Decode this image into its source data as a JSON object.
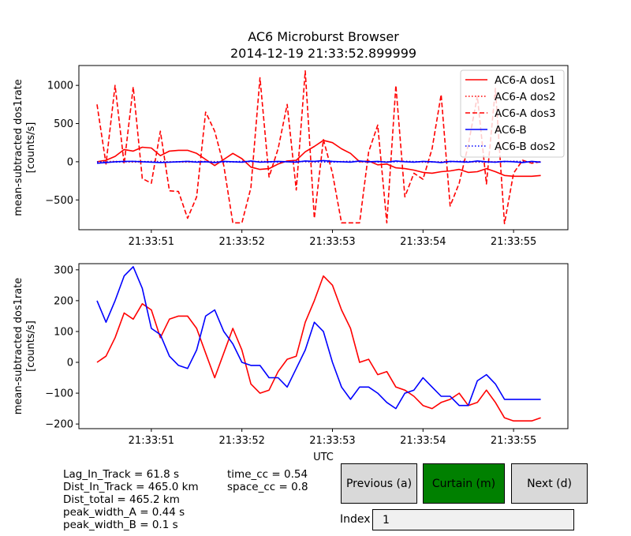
{
  "title": {
    "line1": "AC6 Microburst Browser",
    "line2": "2014-12-19 21:33:52.899999"
  },
  "colors": {
    "ac6a": "#ff0000",
    "ac6b": "#0000ff",
    "button_face": "#d9d9d9",
    "button_active": "#008000",
    "textbox_bg": "#f0f0f0"
  },
  "chart_data": [
    {
      "type": "line",
      "ylabel": "mean-subtracted dos1rate\n[counts/s]",
      "ylim": [
        -890,
        1260
      ],
      "yticks": [
        -500,
        0,
        500,
        1000
      ],
      "xlim": [
        50.2,
        55.6
      ],
      "xticks": [
        51,
        52,
        53,
        54,
        55
      ],
      "xtick_labels": [
        "21:33:51",
        "21:33:52",
        "21:33:53",
        "21:33:54",
        "21:33:55"
      ],
      "legend": {
        "placement": "top-right",
        "entries": [
          "AC6-A dos1",
          "AC6-A dos2",
          "AC6-A dos3",
          "AC6-B",
          "AC6-B dos2"
        ]
      },
      "series": [
        {
          "name": "AC6-A dos1",
          "color": "#ff0000",
          "dash": "solid",
          "x": [
            50.4,
            50.5,
            50.6,
            50.7,
            50.8,
            50.9,
            51.0,
            51.1,
            51.2,
            51.3,
            51.4,
            51.5,
            51.6,
            51.7,
            51.8,
            51.9,
            52.0,
            52.1,
            52.2,
            52.3,
            52.4,
            52.5,
            52.6,
            52.7,
            52.8,
            52.9,
            53.0,
            53.1,
            53.2,
            53.3,
            53.4,
            53.5,
            53.6,
            53.7,
            53.8,
            53.9,
            54.0,
            54.1,
            54.2,
            54.3,
            54.4,
            54.5,
            54.6,
            54.7,
            54.8,
            54.9,
            55.0,
            55.1,
            55.2,
            55.3
          ],
          "y": [
            0,
            20,
            70,
            160,
            140,
            190,
            180,
            80,
            140,
            150,
            150,
            110,
            30,
            -50,
            30,
            110,
            40,
            -70,
            -100,
            -90,
            -30,
            10,
            20,
            130,
            200,
            280,
            250,
            170,
            110,
            0,
            10,
            -40,
            -30,
            -80,
            -90,
            -110,
            -140,
            -150,
            -130,
            -120,
            -100,
            -140,
            -130,
            -90,
            -130,
            -180,
            -190,
            -190,
            -190,
            -180
          ]
        },
        {
          "name": "AC6-A dos2",
          "color": "#ff0000",
          "dash": "dotted",
          "x": [
            50.4,
            50.6,
            50.8,
            51.0,
            51.2,
            51.4,
            51.6,
            51.8,
            52.0,
            52.2,
            52.4,
            52.6,
            52.8,
            53.0,
            53.2,
            53.4,
            53.6,
            53.8,
            54.0,
            54.2,
            54.4,
            54.6,
            54.8,
            55.0,
            55.2,
            55.3
          ],
          "y": [
            0,
            5,
            -5,
            5,
            0,
            -5,
            5,
            0,
            -5,
            5,
            0,
            5,
            -5,
            0,
            5,
            -5,
            0,
            5,
            -5,
            0,
            5,
            -5,
            0,
            5,
            -5,
            0
          ]
        },
        {
          "name": "AC6-A dos3",
          "color": "#ff0000",
          "dash": "dashed",
          "x": [
            50.4,
            50.5,
            50.6,
            50.7,
            50.8,
            50.9,
            51.0,
            51.1,
            51.2,
            51.3,
            51.4,
            51.5,
            51.6,
            51.7,
            51.8,
            51.9,
            52.0,
            52.1,
            52.2,
            52.3,
            52.4,
            52.5,
            52.6,
            52.7,
            52.8,
            52.9,
            53.0,
            53.1,
            53.2,
            53.3,
            53.4,
            53.5,
            53.6,
            53.7,
            53.8,
            53.9,
            54.0,
            54.1,
            54.2,
            54.3,
            54.4,
            54.5,
            54.6,
            54.7,
            54.8,
            54.9,
            55.0,
            55.1,
            55.2,
            55.3
          ],
          "y": [
            750,
            -30,
            1000,
            -30,
            980,
            -220,
            -280,
            400,
            -380,
            -390,
            -740,
            -460,
            650,
            400,
            -50,
            -800,
            -800,
            -340,
            1100,
            -200,
            170,
            750,
            -370,
            1190,
            -740,
            290,
            -150,
            -800,
            -800,
            -800,
            130,
            480,
            -800,
            1000,
            -460,
            -150,
            -230,
            170,
            880,
            -580,
            -280,
            220,
            860,
            -290,
            960,
            -810,
            -150,
            20,
            -20,
            0
          ]
        },
        {
          "name": "AC6-B",
          "color": "#0000ff",
          "dash": "solid",
          "x": [
            50.4,
            50.5,
            50.6,
            50.7,
            50.8,
            50.9,
            51.0,
            51.1,
            51.2,
            51.3,
            51.4,
            51.5,
            51.6,
            51.7,
            51.8,
            51.9,
            52.0,
            52.1,
            52.2,
            52.3,
            52.4,
            52.5,
            52.6,
            52.7,
            52.8,
            52.9,
            53.0,
            53.1,
            53.2,
            53.3,
            53.4,
            53.5,
            53.6,
            53.7,
            53.8,
            53.9,
            54.0,
            54.1,
            54.2,
            54.3,
            54.4,
            54.5,
            54.6,
            54.7,
            54.8,
            54.9,
            55.0,
            55.1,
            55.2,
            55.3
          ],
          "y": [
            -20,
            -10,
            0,
            5,
            5,
            0,
            -5,
            -10,
            -5,
            0,
            5,
            -5,
            0,
            -10,
            5,
            0,
            -5,
            10,
            -5,
            0,
            5,
            0,
            -5,
            10,
            5,
            15,
            5,
            0,
            -5,
            10,
            0,
            5,
            -5,
            10,
            0,
            -5,
            5,
            0,
            -10,
            5,
            0,
            -5,
            10,
            0,
            -5,
            5,
            0,
            -10,
            5,
            -5
          ]
        },
        {
          "name": "AC6-B dos2",
          "color": "#0000ff",
          "dash": "dotted",
          "x": [
            50.4,
            50.6,
            50.8,
            51.0,
            51.2,
            51.4,
            51.6,
            51.8,
            52.0,
            52.2,
            52.4,
            52.6,
            52.8,
            53.0,
            53.2,
            53.4,
            53.6,
            53.8,
            54.0,
            54.2,
            54.4,
            54.6,
            54.8,
            55.0,
            55.2,
            55.3
          ],
          "y": [
            0,
            -5,
            5,
            0,
            -5,
            5,
            0,
            -5,
            5,
            0,
            -5,
            5,
            0,
            -5,
            5,
            0,
            -5,
            5,
            0,
            -5,
            5,
            0,
            -5,
            5,
            0,
            -5
          ]
        }
      ]
    },
    {
      "type": "line",
      "xlabel": "UTC",
      "ylabel": "mean-subtracted dos1rate\n[counts/s]",
      "ylim": [
        -215,
        320
      ],
      "yticks": [
        -200,
        -100,
        0,
        100,
        200,
        300
      ],
      "xlim": [
        50.2,
        55.6
      ],
      "xticks": [
        51,
        52,
        53,
        54,
        55
      ],
      "xtick_labels": [
        "21:33:51",
        "21:33:52",
        "21:33:53",
        "21:33:54",
        "21:33:55"
      ],
      "series": [
        {
          "name": "",
          "color": "#ff0000",
          "dash": "solid",
          "x": [
            50.4,
            50.5,
            50.6,
            50.7,
            50.8,
            50.9,
            51.0,
            51.1,
            51.2,
            51.3,
            51.4,
            51.5,
            51.6,
            51.7,
            51.8,
            51.9,
            52.0,
            52.1,
            52.2,
            52.3,
            52.4,
            52.5,
            52.6,
            52.7,
            52.8,
            52.9,
            53.0,
            53.1,
            53.2,
            53.3,
            53.4,
            53.5,
            53.6,
            53.7,
            53.8,
            53.9,
            54.0,
            54.1,
            54.2,
            54.3,
            54.4,
            54.5,
            54.6,
            54.7,
            54.8,
            54.9,
            55.0,
            55.1,
            55.2,
            55.3
          ],
          "y": [
            0,
            20,
            80,
            160,
            140,
            190,
            170,
            80,
            140,
            150,
            150,
            110,
            30,
            -50,
            30,
            110,
            40,
            -70,
            -100,
            -90,
            -30,
            10,
            20,
            130,
            200,
            280,
            250,
            170,
            110,
            0,
            10,
            -40,
            -30,
            -80,
            -90,
            -110,
            -140,
            -150,
            -130,
            -120,
            -100,
            -140,
            -130,
            -90,
            -130,
            -180,
            -190,
            -190,
            -190,
            -180
          ]
        },
        {
          "name": "",
          "color": "#0000ff",
          "dash": "solid",
          "x": [
            50.4,
            50.5,
            50.6,
            50.7,
            50.8,
            50.9,
            51.0,
            51.1,
            51.2,
            51.3,
            51.4,
            51.5,
            51.6,
            51.7,
            51.8,
            51.9,
            52.0,
            52.1,
            52.2,
            52.3,
            52.4,
            52.5,
            52.6,
            52.7,
            52.8,
            52.9,
            53.0,
            53.1,
            53.2,
            53.3,
            53.4,
            53.5,
            53.6,
            53.7,
            53.8,
            53.9,
            54.0,
            54.1,
            54.2,
            54.3,
            54.4,
            54.5,
            54.6,
            54.7,
            54.8,
            54.9,
            55.0,
            55.1,
            55.2,
            55.3
          ],
          "y": [
            200,
            130,
            200,
            280,
            310,
            240,
            110,
            90,
            20,
            -10,
            -20,
            40,
            150,
            170,
            100,
            60,
            0,
            -10,
            -10,
            -50,
            -50,
            -80,
            -20,
            40,
            130,
            100,
            0,
            -80,
            -120,
            -80,
            -80,
            -100,
            -130,
            -150,
            -100,
            -90,
            -50,
            -80,
            -110,
            -110,
            -140,
            -140,
            -60,
            -40,
            -70,
            -120,
            -120,
            -120,
            -120,
            -120
          ]
        }
      ]
    }
  ],
  "stats": {
    "lag_in_track": "Lag_In_Track = 61.8 s",
    "dist_in_track": "Dist_In_Track = 465.0 km",
    "dist_total": "Dist_total = 465.2 km",
    "peak_width_a": "peak_width_A = 0.44 s",
    "peak_width_b": "peak_width_B = 0.1 s",
    "time_cc": "time_cc = 0.54",
    "space_cc": "space_cc = 0.8"
  },
  "controls": {
    "previous_label": "Previous (a)",
    "curtain_label": "Curtain (m)",
    "next_label": "Next (d)",
    "index_label": "Index",
    "index_value": "1"
  }
}
